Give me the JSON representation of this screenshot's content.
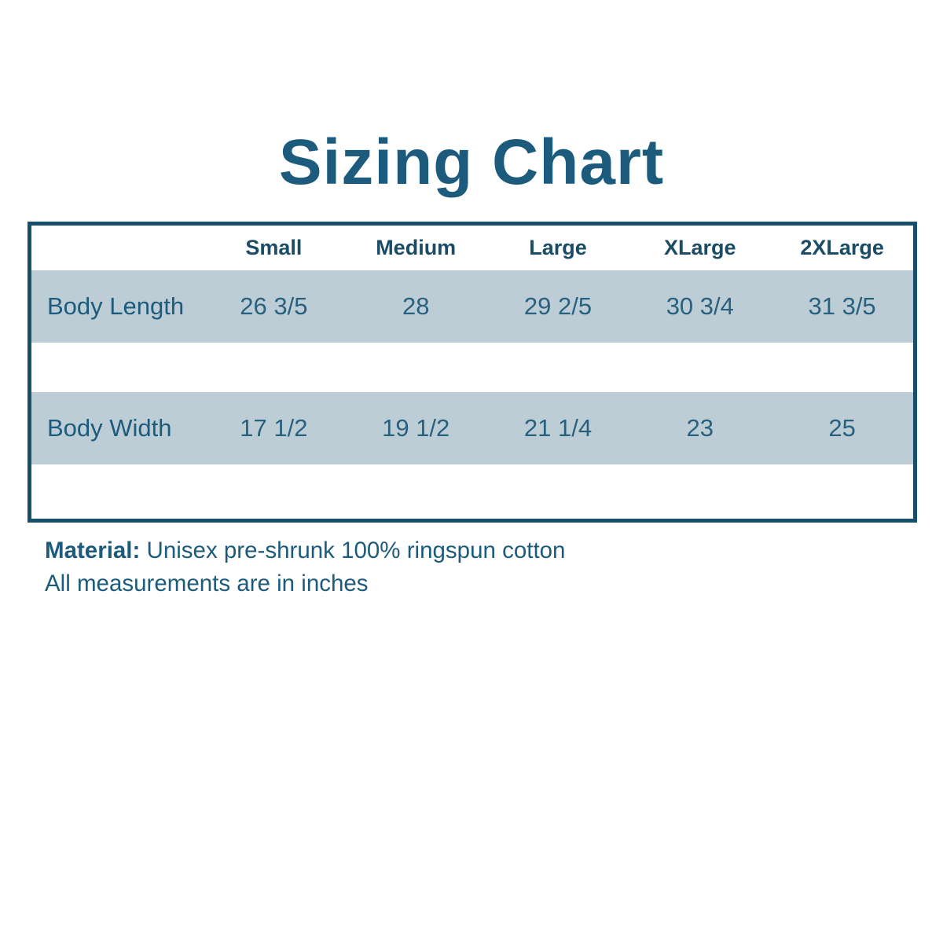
{
  "title": "Sizing Chart",
  "colors": {
    "accent_dark_teal": "#1d5b7d",
    "table_border": "#17506d",
    "row_band": "#bccdd6",
    "background": "#ffffff"
  },
  "chart_data": {
    "type": "table",
    "title": "Sizing Chart",
    "columns": [
      "Small",
      "Medium",
      "Large",
      "XLarge",
      "2XLarge"
    ],
    "rows": [
      {
        "label": "Body Length",
        "values": [
          "26 3/5",
          "28",
          "29 2/5",
          "30 3/4",
          "31 3/5"
        ]
      },
      {
        "label": "Body Width",
        "values": [
          "17 1/2",
          "19 1/2",
          "21 1/4",
          "23",
          "25"
        ]
      }
    ],
    "notes": [
      "Material: Unisex pre-shrunk 100% ringspun cotton",
      "All measurements are in inches"
    ],
    "layout_hints": {
      "banded_rows": true,
      "header_row_background": "#ffffff",
      "data_row_background": "#bccdd6"
    }
  },
  "footer": {
    "material_label": "Material:",
    "material_text": " Unisex pre-shrunk 100% ringspun cotton",
    "note": "All measurements are in inches"
  }
}
